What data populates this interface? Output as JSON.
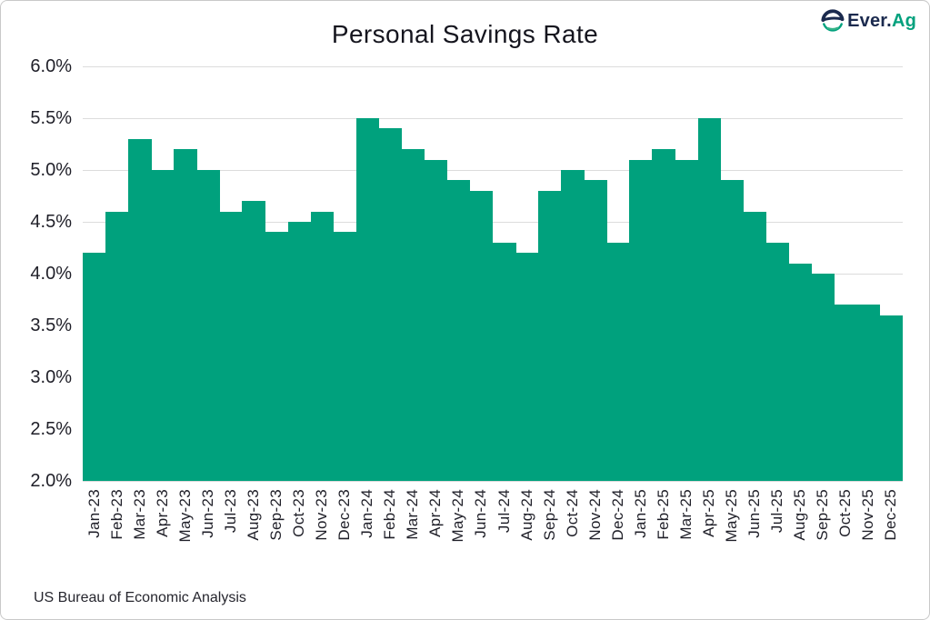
{
  "header": {
    "title": "Personal Savings Rate",
    "logo": {
      "icon": "ever-ag-globe-icon",
      "text_primary": "Ever.",
      "text_secondary": "Ag"
    }
  },
  "footer": {
    "source": "US Bureau of Economic Analysis"
  },
  "colors": {
    "bar": "#00A17D",
    "gridline": "#DCDCDC",
    "axis_text": "#1F1F28",
    "title_text": "#15151E",
    "logo_navy": "#1B2A4E",
    "logo_green": "#00A17D",
    "frame_border": "#C9C9C9",
    "background": "#FFFFFF"
  },
  "chart_data": {
    "type": "bar",
    "title": "Personal Savings Rate",
    "xlabel": "",
    "ylabel": "",
    "unit": "percent",
    "categories": [
      "Jan-23",
      "Feb-23",
      "Mar-23",
      "Apr-23",
      "May-23",
      "Jun-23",
      "Jul-23",
      "Aug-23",
      "Sep-23",
      "Oct-23",
      "Nov-23",
      "Dec-23",
      "Jan-24",
      "Feb-24",
      "Mar-24",
      "Apr-24",
      "May-24",
      "Jun-24",
      "Jul-24",
      "Aug-24",
      "Sep-24",
      "Oct-24",
      "Nov-24",
      "Dec-24",
      "Jan-25",
      "Feb-25",
      "Mar-25",
      "Apr-25",
      "May-25",
      "Jun-25",
      "Jul-25",
      "Aug-25",
      "Sep-25",
      "Oct-25",
      "Nov-25",
      "Dec-25"
    ],
    "values": [
      4.2,
      4.6,
      5.3,
      5.0,
      5.2,
      5.0,
      4.6,
      4.7,
      4.4,
      4.5,
      4.6,
      4.4,
      5.5,
      5.4,
      5.2,
      5.1,
      4.9,
      4.8,
      4.3,
      4.2,
      4.8,
      5.0,
      4.9,
      4.3,
      5.1,
      5.2,
      5.1,
      5.5,
      4.9,
      4.6,
      4.3,
      4.1,
      4.0,
      3.7,
      3.7,
      3.6
    ],
    "y_axis": {
      "min": 2.0,
      "max": 6.0,
      "step": 0.5,
      "tick_labels": [
        "6.0%",
        "5.5%",
        "5.0%",
        "4.5%",
        "4.0%",
        "3.5%",
        "3.0%",
        "2.5%",
        "2.0%"
      ]
    },
    "grid": "horizontal",
    "legend": "none",
    "bar_gap": 0,
    "source": "US Bureau of Economic Analysis"
  }
}
